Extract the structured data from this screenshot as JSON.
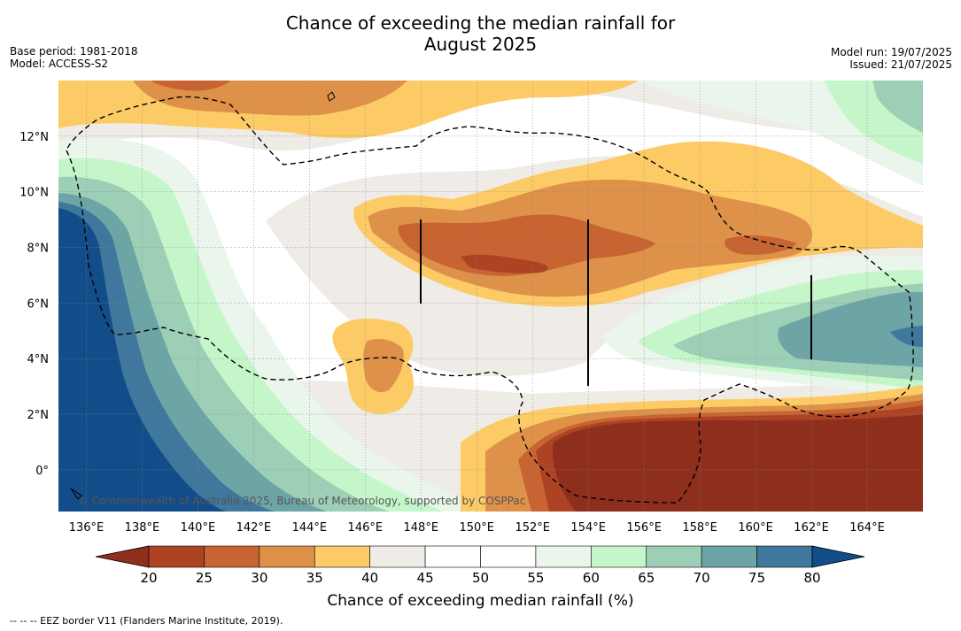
{
  "title": {
    "line1": "Chance of exceeding the median rainfall for",
    "line2": "August 2025"
  },
  "meta_left": {
    "base_period": "Base period: 1981-2018",
    "model": "Model: ACCESS-S2"
  },
  "meta_right": {
    "model_run": "Model run: 19/07/2025",
    "issued": "Issued: 21/07/2025"
  },
  "map": {
    "lon_labels": [
      "136°E",
      "138°E",
      "140°E",
      "142°E",
      "144°E",
      "146°E",
      "148°E",
      "150°E",
      "152°E",
      "154°E",
      "156°E",
      "158°E",
      "160°E",
      "162°E",
      "164°E"
    ],
    "lat_labels": [
      "12°N",
      "10°N",
      "8°N",
      "6°N",
      "4°N",
      "2°N",
      "0°"
    ],
    "lon_range": [
      135,
      166
    ],
    "lat_range": [
      -1.5,
      14
    ],
    "copyright": "© Commonwealth of Australia 2025, Bureau of Meteorology, supported by COSPPac"
  },
  "colorbar": {
    "ticks": [
      "20",
      "25",
      "30",
      "35",
      "40",
      "45",
      "50",
      "55",
      "60",
      "65",
      "70",
      "75",
      "80"
    ],
    "colors": [
      "#8e2e1d",
      "#ad4323",
      "#c86432",
      "#de9149",
      "#fccb66",
      "#efebe6",
      "#ffffff",
      "#ffffff",
      "#eaf5eb",
      "#c5f6c9",
      "#9dcfb6",
      "#6da5a6",
      "#40779c",
      "#124d8a"
    ],
    "label": "Chance of exceeding median rainfall (%)"
  },
  "footnote": "--  --  -- EEZ border V11 (Flanders Marine Institute, 2019)."
}
